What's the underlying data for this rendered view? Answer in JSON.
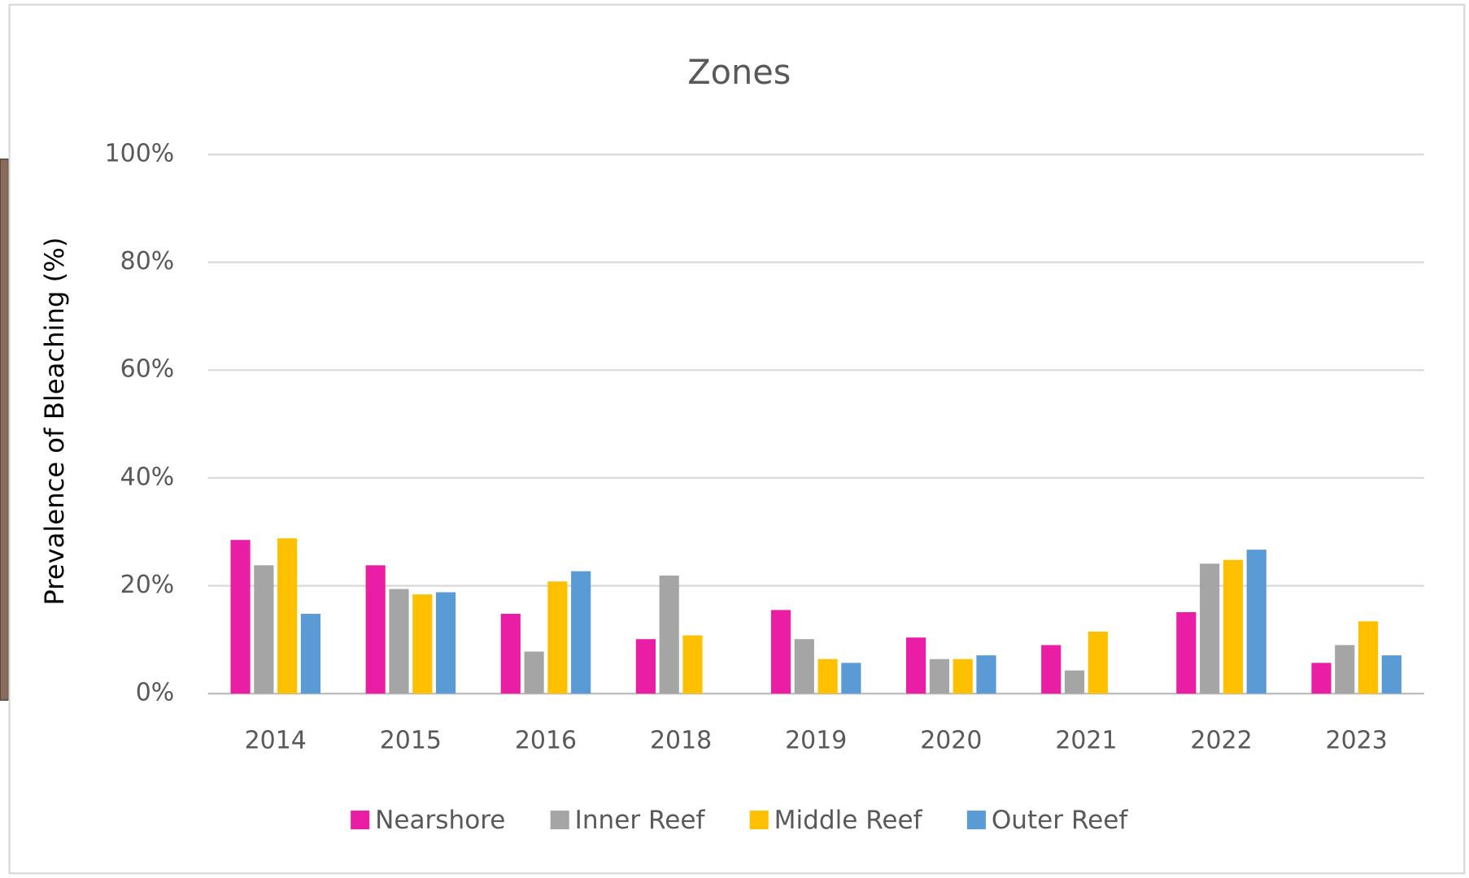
{
  "chart_data": {
    "type": "bar",
    "title": "Zones",
    "y_label": "Prevalence of Bleaching (%)",
    "categories": [
      "2014",
      "2015",
      "2016",
      "2018",
      "2019",
      "2020",
      "2021",
      "2022",
      "2023"
    ],
    "series": [
      {
        "name": "Nearshore",
        "color": "#e91ea5",
        "values": [
          28.5,
          23.8,
          14.8,
          10.1,
          15.5,
          10.4,
          9.0,
          15.1,
          5.7
        ]
      },
      {
        "name": "Inner Reef",
        "color": "#a5a5a5",
        "values": [
          23.8,
          19.4,
          7.8,
          21.9,
          10.1,
          6.4,
          4.3,
          24.1,
          9.0
        ]
      },
      {
        "name": "Middle Reef",
        "color": "#ffc000",
        "values": [
          28.8,
          18.4,
          20.8,
          10.8,
          6.4,
          6.4,
          11.5,
          24.8,
          13.4
        ]
      },
      {
        "name": "Outer Reef",
        "color": "#5b9bd5",
        "values": [
          14.8,
          18.8,
          22.7,
          null,
          5.7,
          7.1,
          null,
          26.7,
          7.1
        ]
      }
    ],
    "ylim": [
      0,
      100
    ],
    "yticks": [
      {
        "value": 0,
        "label": "0%"
      },
      {
        "value": 20,
        "label": "20%"
      },
      {
        "value": 40,
        "label": "40%"
      },
      {
        "value": 60,
        "label": "60%"
      },
      {
        "value": 80,
        "label": "80%"
      },
      {
        "value": 100,
        "label": "100%"
      }
    ],
    "grid": true,
    "legend": "bottom"
  }
}
